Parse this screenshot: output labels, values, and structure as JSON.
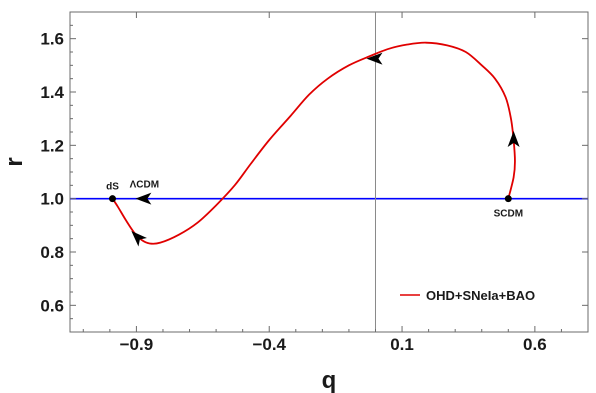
{
  "chart_data": {
    "type": "line",
    "xlabel": "q",
    "ylabel": "r",
    "xlim": [
      -1.15,
      0.8
    ],
    "ylim": [
      0.5,
      1.7
    ],
    "xticks": [
      -0.9,
      -0.4,
      0.1,
      0.6
    ],
    "yticks": [
      0.6,
      0.8,
      1.0,
      1.2,
      1.4,
      1.6
    ],
    "xtick_labels": [
      "−0.9",
      "−0.4",
      "0.1",
      "0.6"
    ],
    "ytick_labels": [
      "0.6",
      "0.8",
      "1.0",
      "1.2",
      "1.4",
      "1.6"
    ],
    "grid": false,
    "legend_position": "bottom-right",
    "reference_lines": [
      {
        "orientation": "horizontal",
        "value": 1.0,
        "color": "#0000ff"
      },
      {
        "orientation": "vertical",
        "value": 0.0,
        "color": "#888888"
      }
    ],
    "series": [
      {
        "name": "OHD+SNeIa+BAO",
        "color": "#e00000",
        "points": [
          [
            0.5,
            1.0
          ],
          [
            0.52,
            1.08
          ],
          [
            0.525,
            1.14
          ],
          [
            0.52,
            1.22
          ],
          [
            0.51,
            1.3
          ],
          [
            0.49,
            1.38
          ],
          [
            0.45,
            1.45
          ],
          [
            0.4,
            1.5
          ],
          [
            0.34,
            1.55
          ],
          [
            0.27,
            1.575
          ],
          [
            0.19,
            1.585
          ],
          [
            0.12,
            1.578
          ],
          [
            0.05,
            1.562
          ],
          [
            -0.02,
            1.535
          ],
          [
            -0.1,
            1.5
          ],
          [
            -0.18,
            1.45
          ],
          [
            -0.25,
            1.39
          ],
          [
            -0.32,
            1.31
          ],
          [
            -0.4,
            1.22
          ],
          [
            -0.47,
            1.13
          ],
          [
            -0.53,
            1.05
          ],
          [
            -0.6,
            0.975
          ],
          [
            -0.67,
            0.91
          ],
          [
            -0.74,
            0.865
          ],
          [
            -0.81,
            0.835
          ],
          [
            -0.85,
            0.832
          ],
          [
            -0.88,
            0.845
          ],
          [
            -0.91,
            0.875
          ],
          [
            -0.94,
            0.92
          ],
          [
            -0.97,
            0.97
          ],
          [
            -0.99,
            1.0
          ]
        ]
      }
    ],
    "arrows": [
      {
        "at": [
          0.52,
          1.22
        ],
        "direction": "up"
      },
      {
        "at": [
          0.0,
          1.525
        ],
        "direction": "left"
      },
      {
        "at": [
          -0.87,
          1.0
        ],
        "direction": "left"
      },
      {
        "at": [
          -0.895,
          0.855
        ],
        "direction": "up-left"
      }
    ],
    "points": [
      {
        "label": "dS",
        "x": -0.99,
        "y": 1.0,
        "label_pos": "above"
      },
      {
        "label": "SCDM",
        "x": 0.5,
        "y": 1.0,
        "label_pos": "below"
      }
    ],
    "annotations": [
      {
        "text": "ΛCDM",
        "x": -0.87,
        "y": 1.0,
        "pos": "above"
      }
    ]
  }
}
